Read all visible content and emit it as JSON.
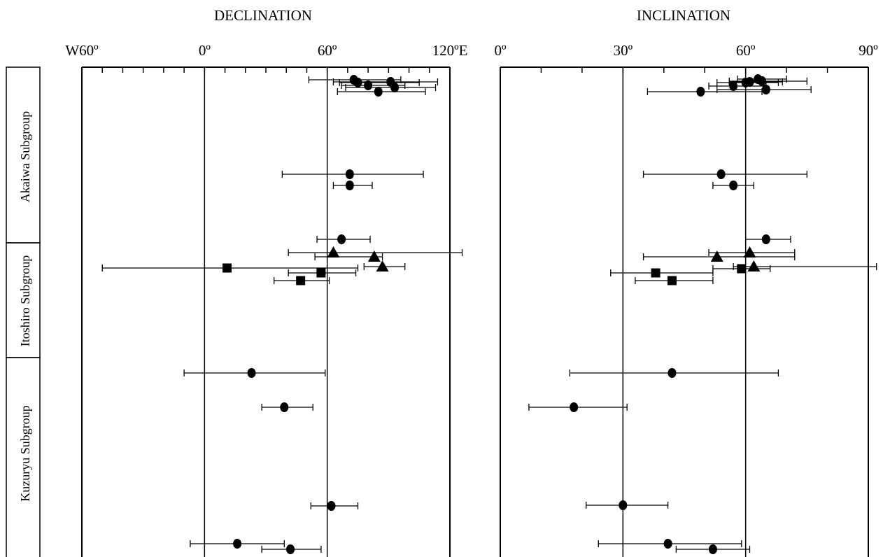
{
  "figure": {
    "declination_title": "DECLINATION",
    "inclination_title": "INCLINATION"
  },
  "groups": [
    {
      "label": "Akaiwa Subgroup"
    },
    {
      "label": "Itoshiro Subgroup"
    },
    {
      "label": "Kuzuryu Subgroup"
    }
  ],
  "colors": {
    "ink": "#000000",
    "background": "#ffffff"
  },
  "chart_data": [
    {
      "type": "scatter",
      "title": "DECLINATION",
      "xlim": [
        -60,
        120
      ],
      "x_tick_labels": [
        "W60º",
        "0º",
        "60º",
        "120ºE"
      ],
      "x_tick_values": [
        -60,
        0,
        60,
        120
      ],
      "minor_tick_step": 10,
      "reference_lines": [
        0,
        60
      ],
      "error_bars": "horizontal",
      "series": [
        {
          "marker": "circle",
          "points": [
            {
              "x": 73,
              "lo": 51,
              "hi": 96
            },
            {
              "x": 75,
              "lo": 66,
              "hi": 105
            },
            {
              "x": 80,
              "lo": 67,
              "hi": 98
            },
            {
              "x": 91,
              "lo": 63,
              "hi": 114
            },
            {
              "x": 93,
              "lo": 69,
              "hi": 113
            },
            {
              "x": 85,
              "lo": 65,
              "hi": 108
            },
            {
              "x": 71,
              "lo": 38,
              "hi": 107
            },
            {
              "x": 71,
              "lo": 63,
              "hi": 82
            },
            {
              "x": 67,
              "lo": 55,
              "hi": 81
            },
            {
              "x": 23,
              "lo": -10,
              "hi": 59
            },
            {
              "x": 39,
              "lo": 28,
              "hi": 53
            },
            {
              "x": 62,
              "lo": 52,
              "hi": 75
            },
            {
              "x": 16,
              "lo": -7,
              "hi": 39
            },
            {
              "x": 42,
              "lo": 28,
              "hi": 57
            }
          ]
        },
        {
          "marker": "triangle",
          "points": [
            {
              "x": 63,
              "lo": 41,
              "hi": 126
            },
            {
              "x": 83,
              "lo": 54,
              "hi": 87
            },
            {
              "x": 87,
              "lo": 78,
              "hi": 98
            }
          ]
        },
        {
          "marker": "square",
          "points": [
            {
              "x": 11,
              "lo": -50,
              "hi": 75
            },
            {
              "x": 57,
              "lo": 41,
              "hi": 74
            },
            {
              "x": 47,
              "lo": 34,
              "hi": 61
            }
          ]
        }
      ]
    },
    {
      "type": "scatter",
      "title": "INCLINATION",
      "xlim": [
        0,
        90
      ],
      "x_tick_labels": [
        "0º",
        "30º",
        "60º",
        "90º"
      ],
      "x_tick_values": [
        0,
        30,
        60,
        90
      ],
      "minor_tick_step": 10,
      "reference_lines": [
        30,
        60
      ],
      "error_bars": "horizontal",
      "series": [
        {
          "marker": "circle",
          "points": [
            {
              "x": 63,
              "lo": 58,
              "hi": 70
            },
            {
              "x": 61,
              "lo": 56,
              "hi": 69
            },
            {
              "x": 64,
              "lo": 56,
              "hi": 75
            },
            {
              "x": 57,
              "lo": 51,
              "hi": 65
            },
            {
              "x": 60,
              "lo": 53,
              "hi": 68
            },
            {
              "x": 65,
              "lo": 53,
              "hi": 76
            },
            {
              "x": 49,
              "lo": 36,
              "hi": 64
            },
            {
              "x": 54,
              "lo": 35,
              "hi": 75
            },
            {
              "x": 57,
              "lo": 52,
              "hi": 62
            },
            {
              "x": 65,
              "lo": 60,
              "hi": 71
            },
            {
              "x": 42,
              "lo": 17,
              "hi": 68
            },
            {
              "x": 18,
              "lo": 7,
              "hi": 31
            },
            {
              "x": 30,
              "lo": 21,
              "hi": 41
            },
            {
              "x": 41,
              "lo": 24,
              "hi": 59
            },
            {
              "x": 52,
              "lo": 43,
              "hi": 61
            }
          ]
        },
        {
          "marker": "triangle",
          "points": [
            {
              "x": 61,
              "lo": 51,
              "hi": 72
            },
            {
              "x": 53,
              "lo": 35,
              "hi": 72
            },
            {
              "x": 62,
              "lo": 57,
              "hi": 92
            }
          ]
        },
        {
          "marker": "square",
          "points": [
            {
              "x": 38,
              "lo": 27,
              "hi": 52
            },
            {
              "x": 59,
              "lo": 52,
              "hi": 66
            },
            {
              "x": 42,
              "lo": 33,
              "hi": 52
            }
          ]
        }
      ]
    }
  ]
}
